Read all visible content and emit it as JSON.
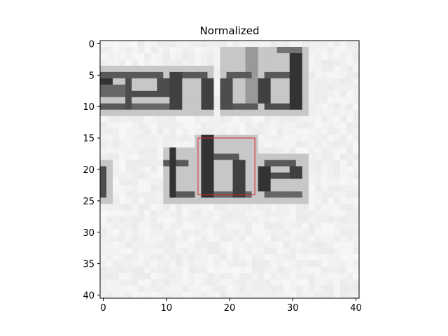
{
  "chart_data": {
    "type": "heatmap",
    "title": "Normalized",
    "colormap": "gray",
    "xlim": [
      -0.5,
      40.5
    ],
    "ylim": [
      40.5,
      -0.5
    ],
    "xticks": [
      0,
      10,
      20,
      30,
      40
    ],
    "yticks": [
      0,
      5,
      10,
      15,
      20,
      25,
      30,
      35,
      40
    ],
    "xtick_labels": [
      "0",
      "10",
      "20",
      "30",
      "40"
    ],
    "ytick_labels": [
      "0",
      "5",
      "10",
      "15",
      "20",
      "25",
      "30",
      "35",
      "40"
    ],
    "image_text_content": [
      "send",
      "the"
    ],
    "highlight_box": {
      "x0": 15,
      "y0": 15,
      "x1": 24,
      "y1": 24,
      "color": "#e02020"
    },
    "background_value": 0.97
  }
}
